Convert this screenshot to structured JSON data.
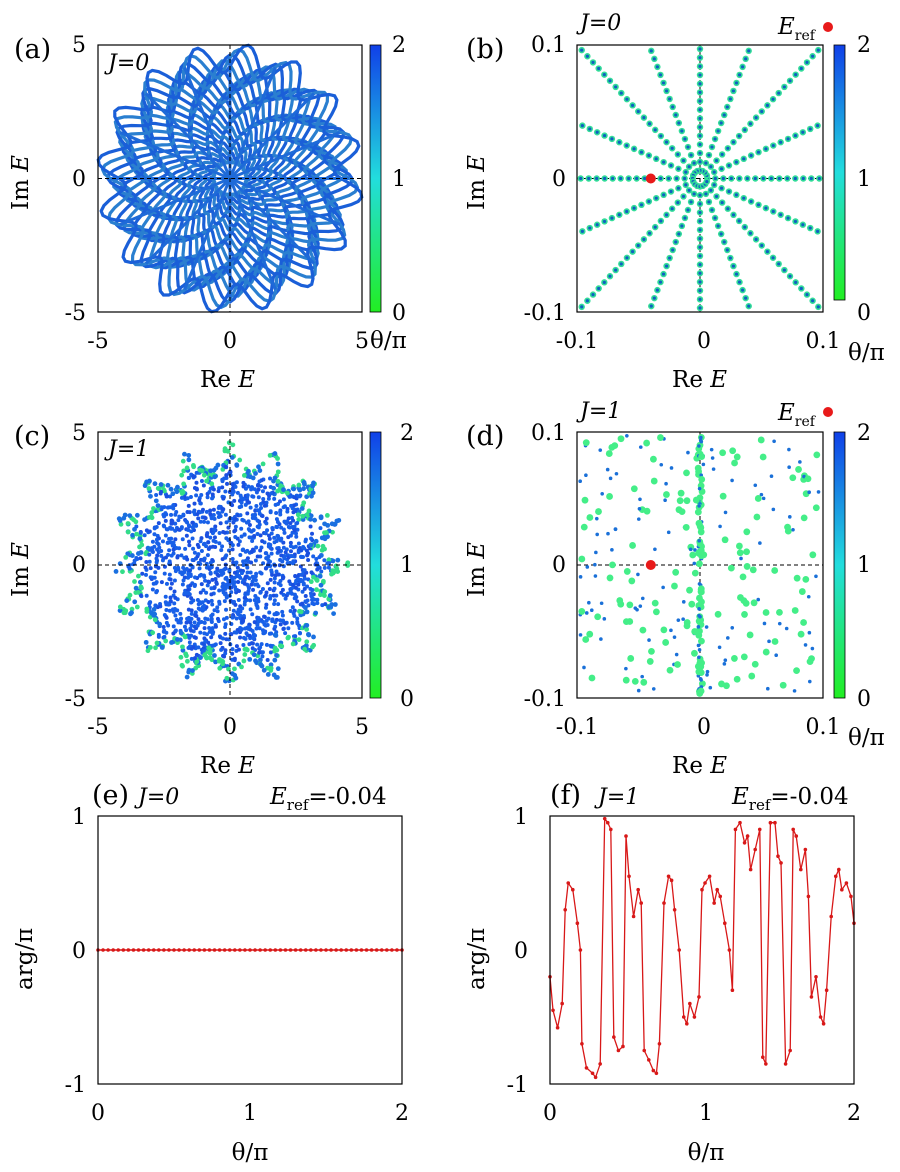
{
  "panels": {
    "a": {
      "letter": "(a)",
      "j_label": "J=0",
      "xlabel_pre": "Re ",
      "xlabel_var": "E",
      "ylabel_pre": "Im ",
      "ylabel_var": "E",
      "cbar_label": "θ/π"
    },
    "b": {
      "letter": "(b)",
      "j_label": "J=0",
      "xlabel_pre": "Re ",
      "xlabel_var": "E",
      "ylabel_pre": "Im ",
      "ylabel_var": "E",
      "cbar_label": "θ/π",
      "legend_main": "E",
      "legend_sub": "ref"
    },
    "c": {
      "letter": "(c)",
      "j_label": "J=1",
      "xlabel_pre": "Re ",
      "xlabel_var": "E",
      "ylabel_pre": "Im ",
      "ylabel_var": "E"
    },
    "d": {
      "letter": "(d)",
      "j_label": "J=1",
      "xlabel_pre": "Re ",
      "xlabel_var": "E",
      "ylabel_pre": "Im ",
      "ylabel_var": "E",
      "cbar_label": "θ/π",
      "legend_main": "E",
      "legend_sub": "ref"
    },
    "e": {
      "letter": "(e)",
      "j_label": "J=0",
      "eref_main": "E",
      "eref_sub": "ref",
      "eref_val": "=-0.04",
      "xlabel": "θ/π",
      "ylabel": "arg/π"
    },
    "f": {
      "letter": "(f)",
      "j_label": "J=1",
      "eref_main": "E",
      "eref_sub": "ref",
      "eref_val": "=-0.04",
      "xlabel": "θ/π",
      "ylabel": "arg/π"
    }
  },
  "colors": {
    "colorbar_bottom": "#22ee22",
    "colorbar_mid": "#22dddd",
    "colorbar_top": "#1040e8",
    "eref_marker": "#e81a1a",
    "line": "#d81818"
  },
  "chart_data": [
    {
      "panel": "a",
      "type": "scatter",
      "description_key": "spectrum",
      "xlim": [
        -5,
        5
      ],
      "ylim": [
        -5,
        5
      ],
      "xticks": [
        "-5",
        "0",
        "5"
      ],
      "yticks": [
        "-5",
        "0",
        "5"
      ],
      "colorbar": {
        "ticks": [
          "0",
          "1",
          "2"
        ],
        "range": [
          0,
          2
        ]
      },
      "symmetry_fold": 16,
      "spectrum_radius": 4.5
    },
    {
      "panel": "b",
      "type": "scatter",
      "xlim": [
        -0.1,
        0.1
      ],
      "ylim": [
        -0.1,
        0.1
      ],
      "xticks": [
        "-0.1",
        "0",
        "0.1"
      ],
      "yticks": [
        "-0.1",
        "0",
        "0.1"
      ],
      "colorbar": {
        "ticks": [
          "0",
          "1",
          "2"
        ],
        "range": [
          0,
          2
        ]
      },
      "rays": 16,
      "e_ref": [
        -0.04,
        0
      ]
    },
    {
      "panel": "c",
      "type": "scatter",
      "xlim": [
        -5,
        5
      ],
      "ylim": [
        -5,
        5
      ],
      "xticks": [
        "-5",
        "0",
        "5"
      ],
      "yticks": [
        "-5",
        "0",
        "5"
      ],
      "colorbar": {
        "ticks": [
          "0",
          "1",
          "2"
        ],
        "range": [
          0,
          2
        ]
      },
      "symmetry_fold": 16,
      "spectrum_radius": 4.7
    },
    {
      "panel": "d",
      "type": "scatter",
      "xlim": [
        -0.1,
        0.1
      ],
      "ylim": [
        -0.1,
        0.1
      ],
      "xticks": [
        "-0.1",
        "0",
        "0.1"
      ],
      "yticks": [
        "-0.1",
        "0",
        "0.1"
      ],
      "colorbar": {
        "ticks": [
          "0",
          "1",
          "2"
        ],
        "range": [
          0,
          2
        ]
      },
      "e_ref": [
        -0.04,
        0
      ]
    },
    {
      "panel": "e",
      "type": "line",
      "xlim": [
        0,
        2
      ],
      "ylim": [
        -1,
        1
      ],
      "xticks": [
        "0",
        "1",
        "2"
      ],
      "yticks": [
        "-1",
        "0",
        "1"
      ],
      "x": [
        0,
        2
      ],
      "y": [
        0,
        0
      ]
    },
    {
      "panel": "f",
      "type": "line",
      "xlim": [
        0,
        2
      ],
      "ylim": [
        -1,
        1
      ],
      "xticks": [
        "0",
        "1",
        "2"
      ],
      "yticks": [
        "-1",
        "0",
        "1"
      ],
      "x": [
        0.0,
        0.02,
        0.05,
        0.08,
        0.1,
        0.12,
        0.15,
        0.18,
        0.2,
        0.21,
        0.24,
        0.28,
        0.3,
        0.33,
        0.36,
        0.38,
        0.4,
        0.42,
        0.45,
        0.48,
        0.5,
        0.52,
        0.55,
        0.58,
        0.6,
        0.62,
        0.65,
        0.68,
        0.7,
        0.72,
        0.75,
        0.78,
        0.8,
        0.82,
        0.85,
        0.88,
        0.9,
        0.92,
        0.95,
        0.98,
        1.0,
        1.02,
        1.05,
        1.08,
        1.1,
        1.12,
        1.15,
        1.18,
        1.2,
        1.22,
        1.25,
        1.28,
        1.3,
        1.32,
        1.35,
        1.38,
        1.4,
        1.42,
        1.45,
        1.48,
        1.5,
        1.52,
        1.55,
        1.58,
        1.6,
        1.62,
        1.65,
        1.68,
        1.7,
        1.72,
        1.75,
        1.78,
        1.8,
        1.82,
        1.85,
        1.88,
        1.9,
        1.92,
        1.95,
        1.98,
        2.0
      ],
      "y": [
        -0.2,
        -0.45,
        -0.58,
        -0.4,
        0.3,
        0.5,
        0.45,
        0.2,
        0.0,
        -0.7,
        -0.88,
        -0.92,
        -0.95,
        -0.85,
        0.98,
        0.95,
        0.9,
        -0.65,
        -0.75,
        -0.72,
        0.85,
        0.55,
        0.25,
        0.45,
        0.35,
        -0.75,
        -0.82,
        -0.9,
        -0.92,
        -0.7,
        0.35,
        0.55,
        0.52,
        0.3,
        0.0,
        -0.5,
        -0.55,
        -0.4,
        -0.5,
        -0.35,
        0.45,
        0.5,
        0.55,
        0.35,
        0.45,
        0.4,
        0.2,
        0.0,
        -0.3,
        0.9,
        0.95,
        0.8,
        0.85,
        0.6,
        0.75,
        0.9,
        -0.8,
        -0.85,
        0.95,
        0.95,
        0.7,
        0.65,
        -0.85,
        -0.75,
        0.9,
        0.85,
        0.6,
        0.75,
        0.4,
        -0.35,
        -0.2,
        -0.5,
        -0.55,
        -0.3,
        0.25,
        0.55,
        0.6,
        0.45,
        0.5,
        0.4,
        0.2
      ]
    }
  ]
}
